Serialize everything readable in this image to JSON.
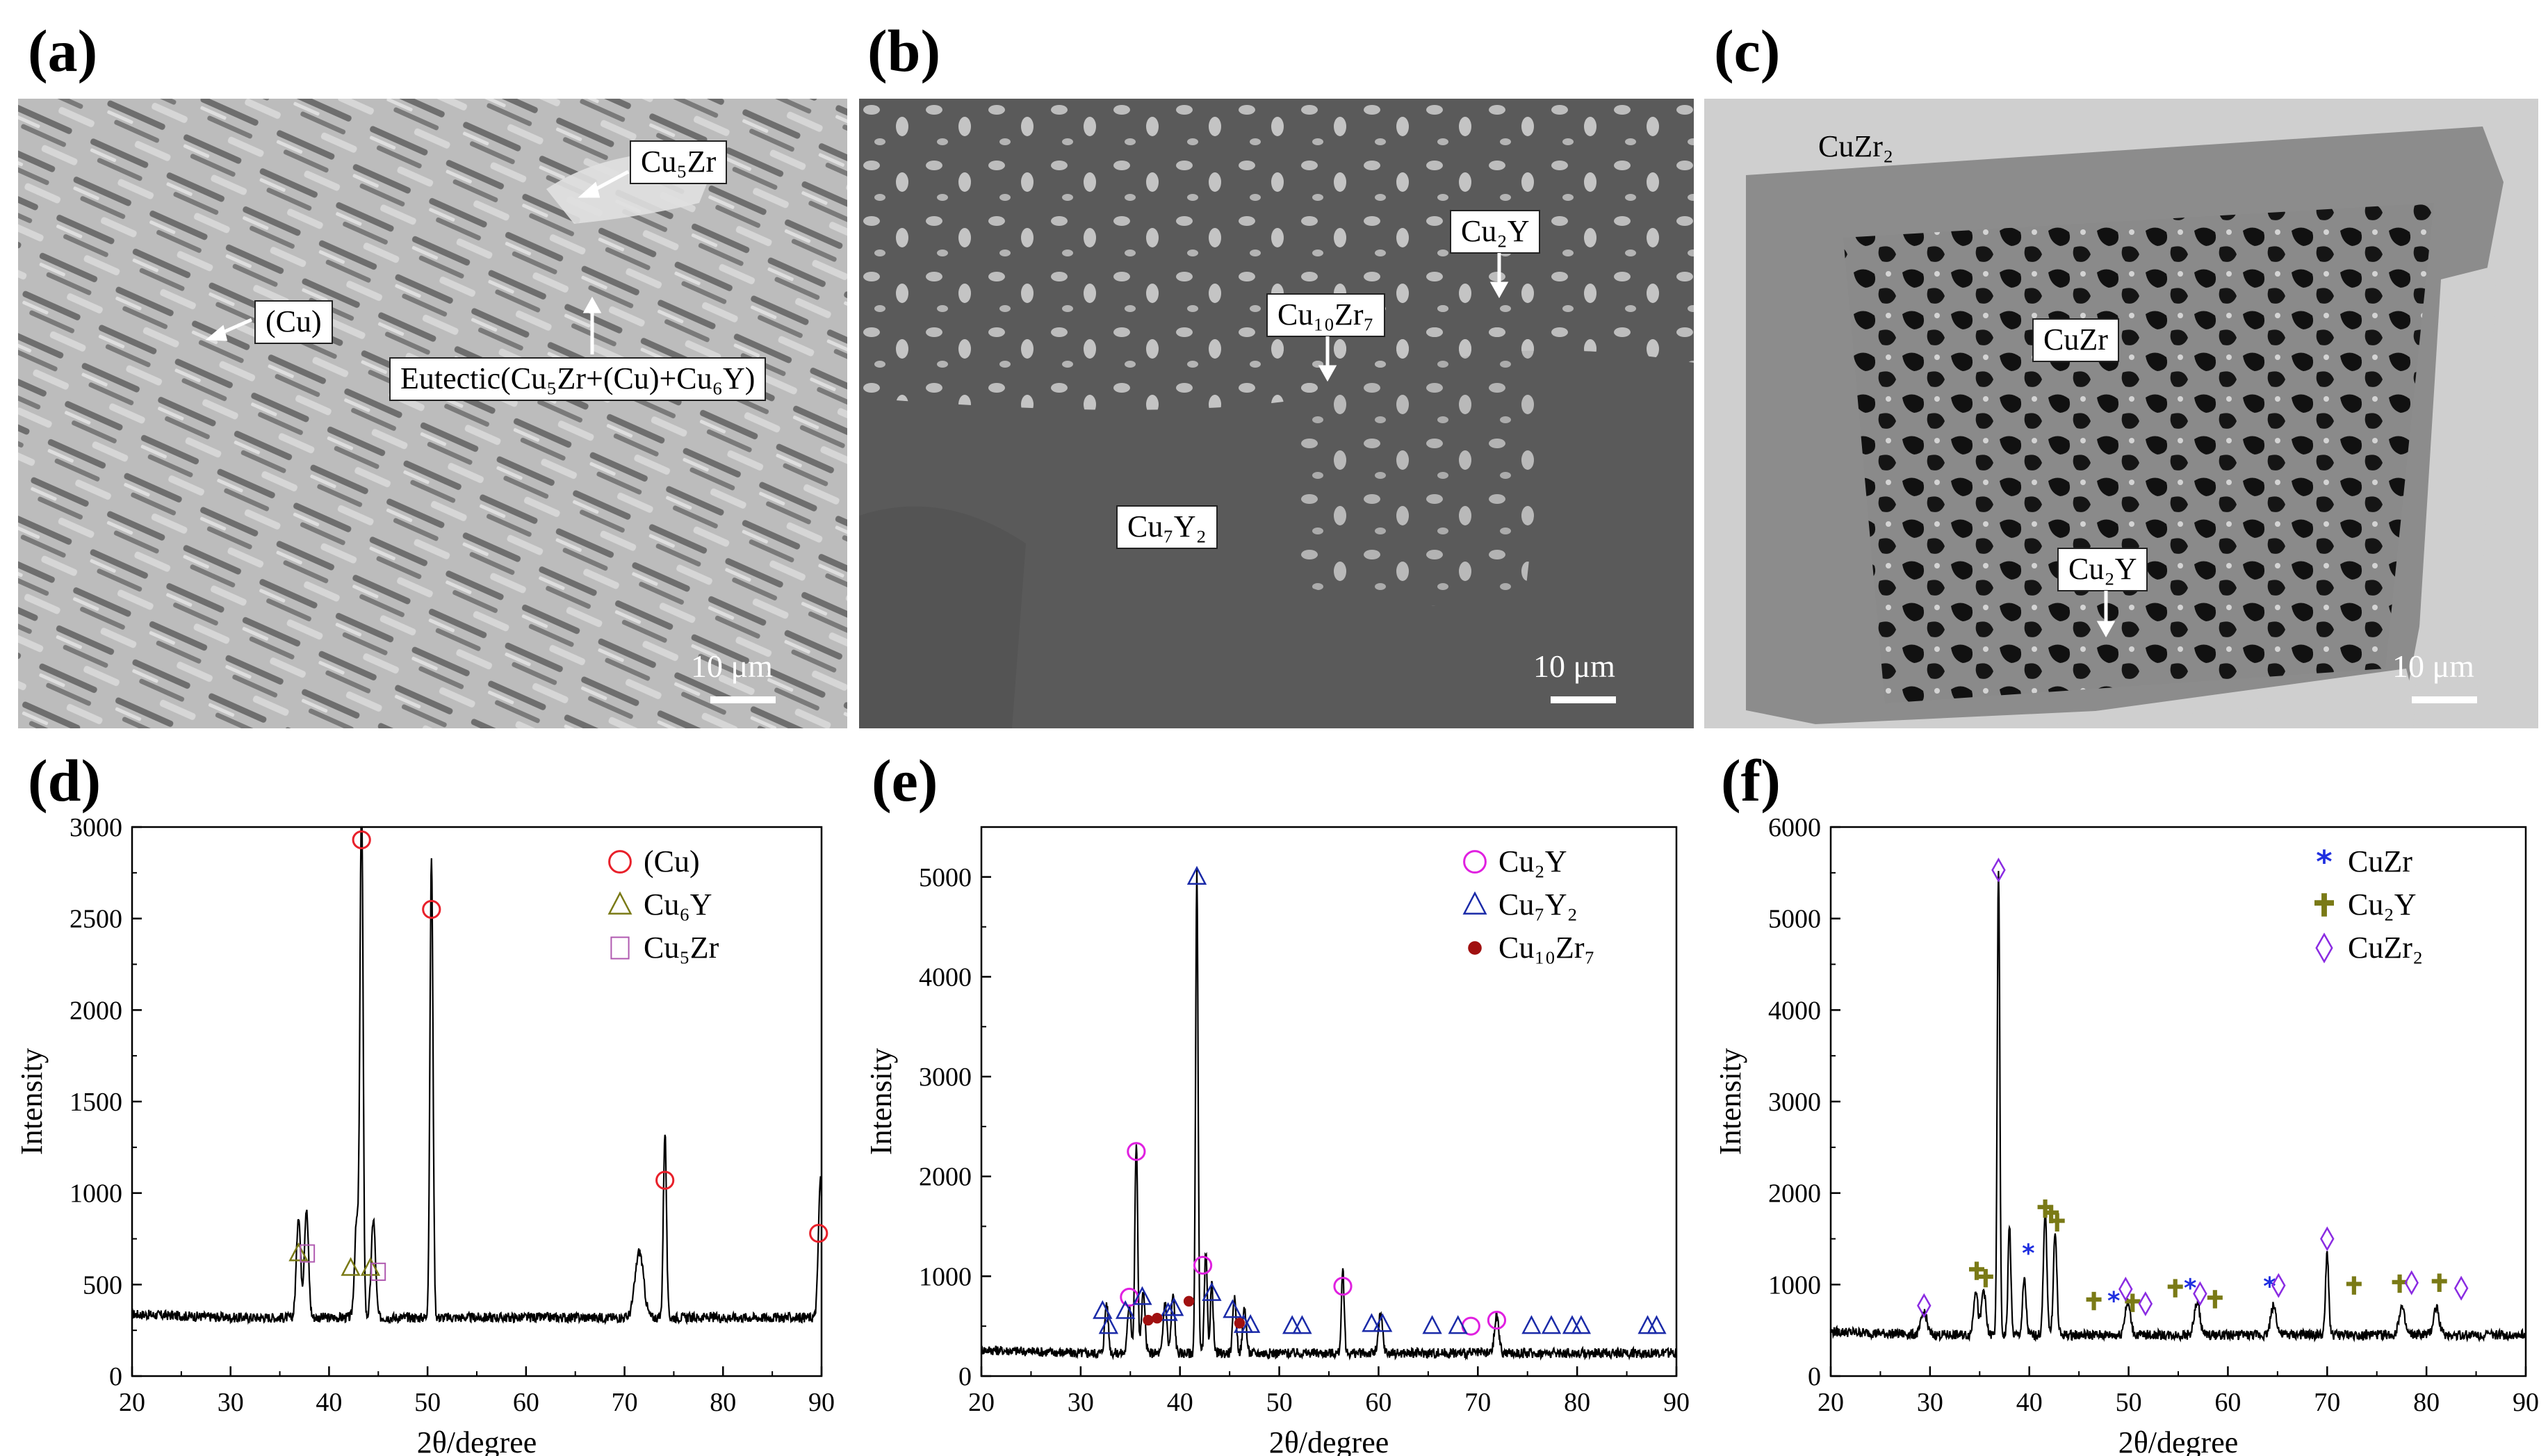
{
  "panels": {
    "a": {
      "letter": "(a)",
      "labels": {
        "cu5zr": "Cu₅Zr",
        "cu": "(Cu)",
        "eutectic": "Eutectic(Cu₅Zr+(Cu)+Cu₆Y)"
      },
      "scale": "10 μm"
    },
    "b": {
      "letter": "(b)",
      "labels": {
        "cu2y": "Cu₂Y",
        "cu10zr7": "Cu₁₀Zr₇",
        "cu7y2": "Cu₇Y₂"
      },
      "scale": "10 μm"
    },
    "c": {
      "letter": "(c)",
      "labels": {
        "cuzr2": "CuZr₂",
        "cuzr": "CuZr",
        "cu2y": "Cu₂Y"
      },
      "scale": "10 μm"
    },
    "d": {
      "letter": "(d)"
    },
    "e": {
      "letter": "(e)"
    },
    "f": {
      "letter": "(f)"
    }
  },
  "colors": {
    "cu_marker": "#e8202a",
    "cu6y_marker": "#7a7a16",
    "cu5zr_marker": "#b05ab0",
    "cu2y_e_marker": "#e020e0",
    "cu7y2_marker": "#1a2aa8",
    "cu10zr7_marker": "#a01010",
    "cuzr_marker": "#2030e0",
    "cu2y_f_marker": "#7a7a16",
    "cuzr2_marker": "#8a2be2",
    "line": "#000000"
  },
  "chart_data": [
    {
      "type": "line",
      "xlabel": "2θ/degree",
      "ylabel": "Intensity",
      "xlim": [
        20,
        90
      ],
      "ylim": [
        0,
        3000
      ],
      "xticks": [
        "20",
        "30",
        "40",
        "50",
        "60",
        "70",
        "80",
        "90"
      ],
      "yticks": [
        "0",
        "500",
        "1000",
        "1500",
        "2000",
        "2500",
        "3000"
      ],
      "legend": [
        {
          "name": "(Cu)",
          "marker": "circle",
          "color": "#e8202a"
        },
        {
          "name": "Cu₆Y",
          "marker": "triangle",
          "color": "#7a7a16"
        },
        {
          "name": "Cu₅Zr",
          "marker": "square",
          "color": "#b05ab0"
        }
      ],
      "baseline": 320,
      "peaks": [
        [
          36.9,
          560,
          0.3
        ],
        [
          37.7,
          590,
          0.3
        ],
        [
          42.8,
          520,
          0.3
        ],
        [
          43.3,
          2900,
          0.22
        ],
        [
          44.5,
          540,
          0.3
        ],
        [
          50.4,
          2520,
          0.22
        ],
        [
          71.5,
          360,
          0.6
        ],
        [
          74.1,
          1020,
          0.22
        ],
        [
          89.9,
          760,
          0.3
        ]
      ],
      "markers": [
        {
          "x": 43.3,
          "y": 2930,
          "series": 0
        },
        {
          "x": 50.4,
          "y": 2550,
          "series": 0
        },
        {
          "x": 74.1,
          "y": 1070,
          "series": 0
        },
        {
          "x": 89.7,
          "y": 780,
          "series": 0
        },
        {
          "x": 36.9,
          "y": 670,
          "series": 1
        },
        {
          "x": 42.2,
          "y": 590,
          "series": 1
        },
        {
          "x": 44.2,
          "y": 590,
          "series": 1
        },
        {
          "x": 37.8,
          "y": 670,
          "series": 2
        },
        {
          "x": 45.0,
          "y": 570,
          "series": 2
        }
      ]
    },
    {
      "type": "line",
      "xlabel": "2θ/degree",
      "ylabel": "Intensity",
      "xlim": [
        20,
        90
      ],
      "ylim": [
        0,
        5500
      ],
      "xticks": [
        "20",
        "30",
        "40",
        "50",
        "60",
        "70",
        "80",
        "90"
      ],
      "yticks": [
        "0",
        "1000",
        "2000",
        "3000",
        "4000",
        "5000"
      ],
      "legend": [
        {
          "name": "Cu₂Y",
          "marker": "circle",
          "color": "#e020e0"
        },
        {
          "name": "Cu₇Y₂",
          "marker": "triangle",
          "color": "#1a2aa8"
        },
        {
          "name": "Cu₁₀Zr₇",
          "marker": "dot",
          "color": "#a01010"
        }
      ],
      "baseline": 230,
      "peaks": [
        [
          32.6,
          500,
          0.25
        ],
        [
          34.9,
          500,
          0.25
        ],
        [
          35.6,
          2100,
          0.2
        ],
        [
          36.3,
          600,
          0.25
        ],
        [
          38.5,
          520,
          0.25
        ],
        [
          39.3,
          580,
          0.25
        ],
        [
          41.7,
          4800,
          0.18
        ],
        [
          42.6,
          1000,
          0.2
        ],
        [
          43.2,
          700,
          0.2
        ],
        [
          45.5,
          540,
          0.25
        ],
        [
          46.5,
          460,
          0.25
        ],
        [
          56.4,
          820,
          0.2
        ],
        [
          60.2,
          380,
          0.3
        ],
        [
          71.9,
          380,
          0.3
        ]
      ],
      "markers": [
        {
          "x": 35.6,
          "y": 2250,
          "series": 0
        },
        {
          "x": 34.9,
          "y": 790,
          "series": 0
        },
        {
          "x": 42.3,
          "y": 1110,
          "series": 0
        },
        {
          "x": 56.4,
          "y": 900,
          "series": 0
        },
        {
          "x": 69.3,
          "y": 500,
          "series": 0
        },
        {
          "x": 71.9,
          "y": 560,
          "series": 0
        },
        {
          "x": 41.7,
          "y": 5000,
          "series": 1
        },
        {
          "x": 32.2,
          "y": 650,
          "series": 1
        },
        {
          "x": 32.8,
          "y": 500,
          "series": 1
        },
        {
          "x": 34.5,
          "y": 650,
          "series": 1
        },
        {
          "x": 36.2,
          "y": 790,
          "series": 1
        },
        {
          "x": 38.8,
          "y": 630,
          "series": 1
        },
        {
          "x": 39.4,
          "y": 680,
          "series": 1
        },
        {
          "x": 43.2,
          "y": 830,
          "series": 1
        },
        {
          "x": 45.3,
          "y": 660,
          "series": 1
        },
        {
          "x": 46.4,
          "y": 510,
          "series": 1
        },
        {
          "x": 47.1,
          "y": 510,
          "series": 1
        },
        {
          "x": 51.3,
          "y": 500,
          "series": 1
        },
        {
          "x": 52.3,
          "y": 500,
          "series": 1
        },
        {
          "x": 59.3,
          "y": 520,
          "series": 1
        },
        {
          "x": 60.4,
          "y": 520,
          "series": 1
        },
        {
          "x": 65.4,
          "y": 500,
          "series": 1
        },
        {
          "x": 68.0,
          "y": 500,
          "series": 1
        },
        {
          "x": 75.4,
          "y": 500,
          "series": 1
        },
        {
          "x": 77.4,
          "y": 500,
          "series": 1
        },
        {
          "x": 79.5,
          "y": 500,
          "series": 1
        },
        {
          "x": 80.4,
          "y": 500,
          "series": 1
        },
        {
          "x": 87.1,
          "y": 500,
          "series": 1
        },
        {
          "x": 88.0,
          "y": 500,
          "series": 1
        },
        {
          "x": 36.8,
          "y": 560,
          "series": 2
        },
        {
          "x": 37.7,
          "y": 580,
          "series": 2
        },
        {
          "x": 40.9,
          "y": 750,
          "series": 2
        },
        {
          "x": 46.0,
          "y": 530,
          "series": 2
        }
      ]
    },
    {
      "type": "line",
      "xlabel": "2θ/degree",
      "ylabel": "Intensity",
      "xlim": [
        20,
        90
      ],
      "ylim": [
        0,
        6000
      ],
      "xticks": [
        "20",
        "30",
        "40",
        "50",
        "60",
        "70",
        "80",
        "90"
      ],
      "yticks": [
        "0",
        "1000",
        "2000",
        "3000",
        "4000",
        "5000",
        "6000"
      ],
      "legend": [
        {
          "name": "CuZr",
          "marker": "star",
          "color": "#2030e0"
        },
        {
          "name": "Cu₂Y",
          "marker": "cross",
          "color": "#7a7a16"
        },
        {
          "name": "CuZr₂",
          "marker": "diamond",
          "color": "#8a2be2"
        }
      ],
      "baseline": 450,
      "peaks": [
        [
          29.4,
          250,
          0.4
        ],
        [
          34.6,
          500,
          0.3
        ],
        [
          35.4,
          500,
          0.3
        ],
        [
          36.9,
          5100,
          0.18
        ],
        [
          38.0,
          1200,
          0.2
        ],
        [
          39.5,
          600,
          0.25
        ],
        [
          41.6,
          1300,
          0.25
        ],
        [
          42.6,
          1100,
          0.25
        ],
        [
          49.9,
          350,
          0.4
        ],
        [
          56.9,
          350,
          0.4
        ],
        [
          64.6,
          320,
          0.4
        ],
        [
          70.0,
          900,
          0.22
        ],
        [
          77.5,
          300,
          0.4
        ],
        [
          81.0,
          300,
          0.4
        ]
      ],
      "markers": [
        {
          "x": 39.9,
          "y": 1340,
          "series": 0
        },
        {
          "x": 48.5,
          "y": 820,
          "series": 0
        },
        {
          "x": 56.2,
          "y": 960,
          "series": 0
        },
        {
          "x": 64.2,
          "y": 980,
          "series": 0
        },
        {
          "x": 34.7,
          "y": 1150,
          "series": 1
        },
        {
          "x": 35.6,
          "y": 1070,
          "series": 1
        },
        {
          "x": 41.6,
          "y": 1830,
          "series": 1
        },
        {
          "x": 42.2,
          "y": 1770,
          "series": 1
        },
        {
          "x": 42.8,
          "y": 1680,
          "series": 1
        },
        {
          "x": 46.5,
          "y": 820,
          "series": 1
        },
        {
          "x": 50.4,
          "y": 800,
          "series": 1
        },
        {
          "x": 54.7,
          "y": 960,
          "series": 1
        },
        {
          "x": 58.7,
          "y": 840,
          "series": 1
        },
        {
          "x": 72.7,
          "y": 990,
          "series": 1
        },
        {
          "x": 77.3,
          "y": 1010,
          "series": 1
        },
        {
          "x": 81.3,
          "y": 1020,
          "series": 1
        },
        {
          "x": 29.4,
          "y": 770,
          "series": 2
        },
        {
          "x": 36.9,
          "y": 5530,
          "series": 2
        },
        {
          "x": 49.7,
          "y": 950,
          "series": 2
        },
        {
          "x": 51.7,
          "y": 790,
          "series": 2
        },
        {
          "x": 57.2,
          "y": 900,
          "series": 2
        },
        {
          "x": 65.1,
          "y": 990,
          "series": 2
        },
        {
          "x": 70.0,
          "y": 1500,
          "series": 2
        },
        {
          "x": 78.5,
          "y": 1020,
          "series": 2
        },
        {
          "x": 83.5,
          "y": 960,
          "series": 2
        }
      ]
    }
  ]
}
